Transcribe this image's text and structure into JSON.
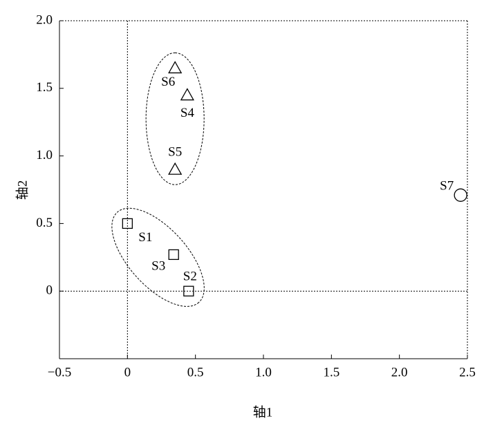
{
  "chart_data": {
    "type": "scatter",
    "x_label": "轴1",
    "y_label": "轴2",
    "xlim": [
      -0.5,
      2.5
    ],
    "xticks": [
      {
        "value": -0.5,
        "label": "−0.5"
      },
      0,
      0.5,
      {
        "value": 1.0,
        "label": "1.0"
      },
      1.5,
      {
        "value": 2.0,
        "label": "2.0"
      },
      2.5
    ],
    "ylim": [
      -0.5,
      2.0
    ],
    "yticks": [
      0,
      0.5,
      {
        "value": 1.0,
        "label": "1.0"
      },
      1.5,
      {
        "value": 2.0,
        "label": "2.0"
      }
    ],
    "reference_lines": {
      "x": [
        0
      ],
      "y": [
        0
      ]
    },
    "series": [
      {
        "marker": "square",
        "color": "#000000",
        "enclosed": true,
        "labels": [
          "S1",
          "S2",
          "S3"
        ],
        "x": [
          0,
          0.45,
          0.34
        ],
        "values": [
          0.5,
          0,
          0.27
        ]
      },
      {
        "marker": "triangle",
        "color": "#000000",
        "enclosed": true,
        "labels": [
          "S4",
          "S5",
          "S6"
        ],
        "x": [
          0.44,
          0.35,
          0.35
        ],
        "values": [
          1.45,
          0.9,
          1.65
        ]
      },
      {
        "marker": "circle",
        "color": "#000000",
        "enclosed": false,
        "labels": [
          "S7"
        ],
        "x": [
          2.45
        ],
        "values": [
          0.71
        ]
      }
    ]
  }
}
